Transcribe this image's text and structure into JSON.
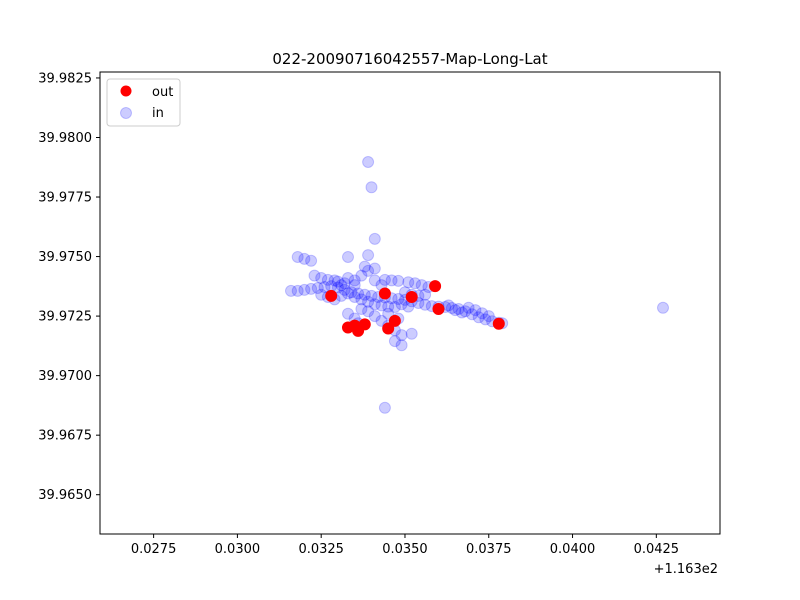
{
  "chart_data": {
    "type": "scatter",
    "title": "022-20090716042557-Map-Long-Lat",
    "xlabel": "",
    "ylabel": "",
    "x_offset_label": "+1.163e2",
    "xlim": [
      0.0259,
      0.0444
    ],
    "ylim": [
      39.96335,
      39.98275
    ],
    "x_ticks": [
      0.0275,
      0.03,
      0.0325,
      0.035,
      0.0375,
      0.04,
      0.0425
    ],
    "x_tick_labels": [
      "0.0275",
      "0.0300",
      "0.0325",
      "0.0350",
      "0.0375",
      "0.0400",
      "0.0425"
    ],
    "y_ticks": [
      39.965,
      39.9675,
      39.97,
      39.9725,
      39.975,
      39.9775,
      39.98,
      39.9825
    ],
    "y_tick_labels": [
      "39.9650",
      "39.9675",
      "39.9700",
      "39.9725",
      "39.9750",
      "39.9775",
      "39.9800",
      "39.9825"
    ],
    "grid": false,
    "legend_position": "top-left",
    "series": [
      {
        "name": "in",
        "color": "#0000ff",
        "alpha": 0.2,
        "points": [
          [
            0.0339,
            39.97897
          ],
          [
            0.034,
            39.97791
          ],
          [
            0.0341,
            39.97574
          ],
          [
            0.0339,
            39.97506
          ],
          [
            0.0333,
            39.97498
          ],
          [
            0.0318,
            39.97498
          ],
          [
            0.032,
            39.9749
          ],
          [
            0.0322,
            39.97482
          ],
          [
            0.0338,
            39.97458
          ],
          [
            0.0341,
            39.9745
          ],
          [
            0.0339,
            39.9744
          ],
          [
            0.0344,
            39.97402
          ],
          [
            0.0346,
            39.974
          ],
          [
            0.0348,
            39.97398
          ],
          [
            0.0351,
            39.97392
          ],
          [
            0.0353,
            39.97388
          ],
          [
            0.0355,
            39.9738
          ],
          [
            0.0357,
            39.97372
          ],
          [
            0.0323,
            39.9742
          ],
          [
            0.0325,
            39.9741
          ],
          [
            0.0327,
            39.97402
          ],
          [
            0.033,
            39.97395
          ],
          [
            0.0332,
            39.97388
          ],
          [
            0.0335,
            39.9738
          ],
          [
            0.0316,
            39.97356
          ],
          [
            0.0318,
            39.97356
          ],
          [
            0.032,
            39.9736
          ],
          [
            0.0322,
            39.97364
          ],
          [
            0.0324,
            39.97368
          ],
          [
            0.0326,
            39.97372
          ],
          [
            0.0328,
            39.97376
          ],
          [
            0.033,
            39.9737
          ],
          [
            0.0332,
            39.9736
          ],
          [
            0.0334,
            39.9735
          ],
          [
            0.0336,
            39.97345
          ],
          [
            0.0338,
            39.9734
          ],
          [
            0.034,
            39.97335
          ],
          [
            0.0342,
            39.9733
          ],
          [
            0.0344,
            39.97328
          ],
          [
            0.0346,
            39.97325
          ],
          [
            0.0348,
            39.97322
          ],
          [
            0.035,
            39.97318
          ],
          [
            0.0352,
            39.97312
          ],
          [
            0.0354,
            39.97305
          ],
          [
            0.0356,
            39.97298
          ],
          [
            0.0358,
            39.97292
          ],
          [
            0.036,
            39.9729
          ],
          [
            0.0362,
            39.97288
          ],
          [
            0.0364,
            39.97284
          ],
          [
            0.0366,
            39.9728
          ],
          [
            0.0368,
            39.9727
          ],
          [
            0.037,
            39.97258
          ],
          [
            0.0372,
            39.97245
          ],
          [
            0.0374,
            39.97236
          ],
          [
            0.0376,
            39.97228
          ],
          [
            0.0378,
            39.97222
          ],
          [
            0.0379,
            39.9722
          ],
          [
            0.0325,
            39.9734
          ],
          [
            0.0327,
            39.9733
          ],
          [
            0.0329,
            39.9732
          ],
          [
            0.0331,
            39.97335
          ],
          [
            0.0333,
            39.97345
          ],
          [
            0.0335,
            39.9733
          ],
          [
            0.0337,
            39.9732
          ],
          [
            0.0339,
            39.9731
          ],
          [
            0.0341,
            39.973
          ],
          [
            0.0343,
            39.97295
          ],
          [
            0.0345,
            39.9729
          ],
          [
            0.0347,
            39.97288
          ],
          [
            0.0349,
            39.973
          ],
          [
            0.0351,
            39.9729
          ],
          [
            0.0333,
            39.9726
          ],
          [
            0.0335,
            39.9724
          ],
          [
            0.0336,
            39.9722
          ],
          [
            0.0337,
            39.9728
          ],
          [
            0.0339,
            39.9727
          ],
          [
            0.0341,
            39.9725
          ],
          [
            0.0343,
            39.9723
          ],
          [
            0.0345,
            39.9721
          ],
          [
            0.0347,
            39.9719
          ],
          [
            0.0349,
            39.9717
          ],
          [
            0.0352,
            39.97176
          ],
          [
            0.0347,
            39.97145
          ],
          [
            0.0349,
            39.97128
          ],
          [
            0.0345,
            39.9726
          ],
          [
            0.0348,
            39.9724
          ],
          [
            0.0343,
            39.9738
          ],
          [
            0.0341,
            39.974
          ],
          [
            0.0337,
            39.9742
          ],
          [
            0.0335,
            39.974
          ],
          [
            0.0333,
            39.9741
          ],
          [
            0.0331,
            39.9738
          ],
          [
            0.0329,
            39.974
          ],
          [
            0.035,
            39.9735
          ],
          [
            0.0352,
            39.9734
          ],
          [
            0.0354,
            39.97335
          ],
          [
            0.0356,
            39.9734
          ],
          [
            0.0344,
            39.96865
          ],
          [
            0.0427,
            39.97285
          ],
          [
            0.0363,
            39.97295
          ],
          [
            0.0365,
            39.97275
          ],
          [
            0.0367,
            39.97265
          ],
          [
            0.0369,
            39.97285
          ],
          [
            0.0371,
            39.97275
          ],
          [
            0.0373,
            39.97262
          ],
          [
            0.0375,
            39.9725
          ]
        ]
      },
      {
        "name": "out",
        "color": "#ff0000",
        "alpha": 1.0,
        "points": [
          [
            0.0359,
            39.97376
          ],
          [
            0.0335,
            39.9721
          ],
          [
            0.0333,
            39.97202
          ],
          [
            0.0336,
            39.97188
          ],
          [
            0.0345,
            39.97198
          ],
          [
            0.0347,
            39.9723
          ],
          [
            0.0338,
            39.97215
          ],
          [
            0.0328,
            39.97335
          ],
          [
            0.0344,
            39.97345
          ],
          [
            0.036,
            39.9728
          ],
          [
            0.0378,
            39.97218
          ],
          [
            0.0352,
            39.9733
          ]
        ]
      }
    ]
  }
}
